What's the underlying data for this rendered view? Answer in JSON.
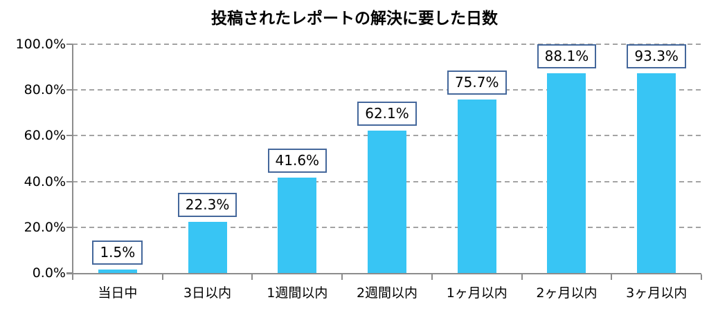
{
  "chart_data": {
    "type": "bar",
    "title": "投稿されたレポートの解決に要した日数",
    "categories": [
      "当日中",
      "3日以内",
      "1週間以内",
      "2週間以内",
      "1ヶ月以内",
      "2ヶ月以内",
      "3ヶ月以内"
    ],
    "values": [
      1.5,
      22.3,
      41.6,
      62.1,
      75.7,
      88.1,
      93.3
    ],
    "data_labels": [
      "1.5%",
      "22.3%",
      "41.6%",
      "62.1%",
      "75.7%",
      "88.1%",
      "93.3%"
    ],
    "y_ticks": [
      {
        "label": "0.0%",
        "value": 0
      },
      {
        "label": "20.0%",
        "value": 20
      },
      {
        "label": "40.0%",
        "value": 40
      },
      {
        "label": "60.0%",
        "value": 60
      },
      {
        "label": "80.0%",
        "value": 80
      },
      {
        "label": "100.0%",
        "value": 100
      }
    ],
    "ylim": [
      0,
      100
    ],
    "xlabel": "",
    "ylabel": "",
    "grid": "horizontal-dashed",
    "legend": "none",
    "colors": {
      "bar": "#38C5F4",
      "label_border": "#44679B",
      "label_background": "#FFFFFF",
      "axis": "#8C8C8C",
      "grid": "#A3A3A3",
      "text": "#000000"
    }
  }
}
